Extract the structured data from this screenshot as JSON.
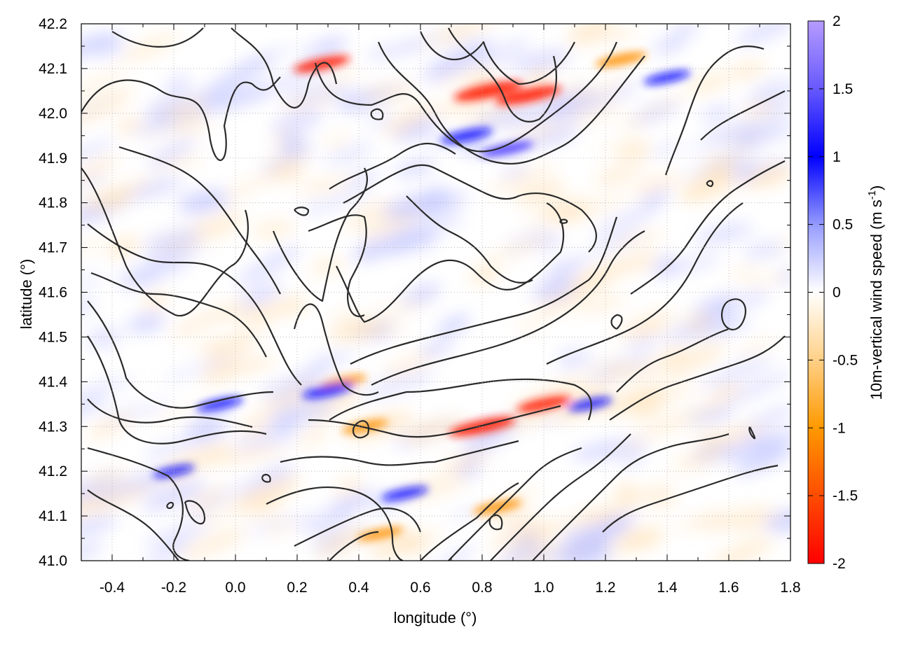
{
  "chart_data": {
    "type": "heatmap",
    "xlabel": "longitude (°)",
    "ylabel": "latitude (°)",
    "colorbar_label": "10m-vertical wind speed (m s",
    "colorbar_label_sup": "-1",
    "colorbar_label_end": ")",
    "xlim": [
      -0.5,
      1.8
    ],
    "ylim": [
      41.0,
      42.2
    ],
    "zlim": [
      -2,
      2
    ],
    "grid": true,
    "x_ticks": [
      -0.4,
      -0.2,
      0.0,
      0.2,
      0.4,
      0.6,
      0.8,
      1.0,
      1.2,
      1.4,
      1.6,
      1.8
    ],
    "x_tick_labels": [
      "-0.4",
      "-0.2",
      "0.0",
      "0.2",
      "0.4",
      "0.6",
      "0.8",
      "1.0",
      "1.2",
      "1.4",
      "1.6",
      "1.8"
    ],
    "y_ticks": [
      41.0,
      41.1,
      41.2,
      41.3,
      41.4,
      41.5,
      41.6,
      41.7,
      41.8,
      41.9,
      42.0,
      42.1,
      42.2
    ],
    "y_tick_labels": [
      "41.0",
      "41.1",
      "41.2",
      "41.3",
      "41.4",
      "41.5",
      "41.6",
      "41.7",
      "41.8",
      "41.9",
      "42.0",
      "42.1",
      "42.2"
    ],
    "colorbar_ticks": [
      2,
      1.5,
      1,
      0.5,
      0,
      -0.5,
      -1,
      -1.5,
      -2
    ],
    "colorbar_tick_labels": [
      "2",
      "1.5",
      "1",
      "0.5",
      "0",
      "-0.5",
      "-1",
      "-1.5",
      "-2"
    ],
    "colormap": [
      "#ff0000",
      "#ff8000",
      "#ffa500",
      "#ffffff",
      "#0000ff",
      "#9370ff",
      "#b090ff"
    ],
    "strong_features": [
      {
        "lon": 0.82,
        "lat": 42.05,
        "value": -1.9
      },
      {
        "lon": 0.95,
        "lat": 42.04,
        "value": -1.8
      },
      {
        "lon": 0.8,
        "lat": 41.3,
        "value": -1.8
      },
      {
        "lon": 0.28,
        "lat": 42.11,
        "value": -1.4
      },
      {
        "lon": 1.0,
        "lat": 41.35,
        "value": -1.3
      },
      {
        "lon": 0.35,
        "lat": 41.4,
        "value": -1.0
      },
      {
        "lon": 0.42,
        "lat": 41.3,
        "value": -1.0
      },
      {
        "lon": 0.85,
        "lat": 41.12,
        "value": -1.1
      },
      {
        "lon": 0.47,
        "lat": 41.06,
        "value": -1.0
      },
      {
        "lon": 1.25,
        "lat": 42.12,
        "value": -1.2
      },
      {
        "lon": 0.75,
        "lat": 41.95,
        "value": 1.2
      },
      {
        "lon": 0.88,
        "lat": 41.92,
        "value": 1.3
      },
      {
        "lon": 0.3,
        "lat": 41.38,
        "value": 1.2
      },
      {
        "lon": -0.05,
        "lat": 41.35,
        "value": 1.0
      },
      {
        "lon": 0.55,
        "lat": 41.15,
        "value": 1.0
      },
      {
        "lon": 1.4,
        "lat": 42.08,
        "value": 1.0
      },
      {
        "lon": 1.15,
        "lat": 41.35,
        "value": 0.9
      },
      {
        "lon": -0.2,
        "lat": 41.2,
        "value": 0.8
      }
    ]
  }
}
